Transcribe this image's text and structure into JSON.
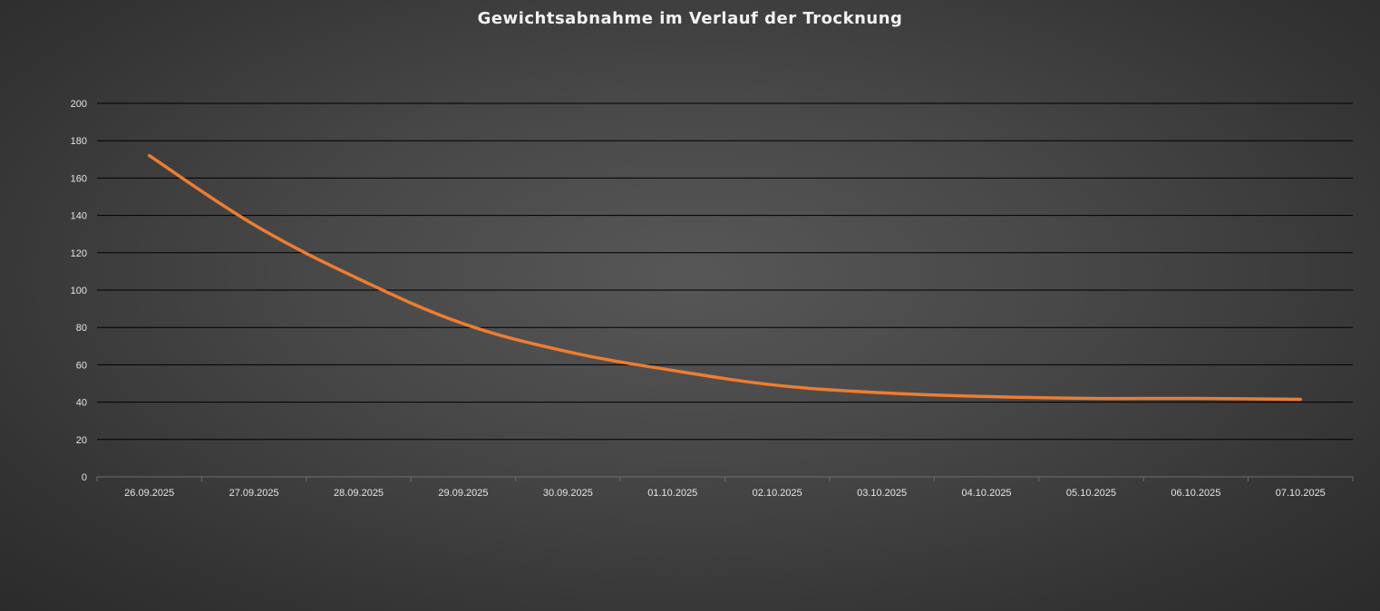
{
  "chart_data": {
    "type": "line",
    "title": "Gewichtsabnahme im Verlauf der Trocknung",
    "xlabel": "",
    "ylabel": "",
    "categories": [
      "26.09.2025",
      "27.09.2025",
      "28.09.2025",
      "29.09.2025",
      "30.09.2025",
      "01.10.2025",
      "02.10.2025",
      "03.10.2025",
      "04.10.2025",
      "05.10.2025",
      "06.10.2025",
      "07.10.2025"
    ],
    "series": [
      {
        "values": [
          172,
          135,
          106,
          82,
          67,
          57,
          49,
          45,
          43,
          42,
          42,
          41.5
        ],
        "color": "#ed7d31"
      }
    ],
    "ylim": [
      0,
      200
    ],
    "yticks": [
      0,
      20,
      40,
      60,
      80,
      100,
      120,
      140,
      160,
      180,
      200
    ],
    "grid": true,
    "legend": "none",
    "background": "#4a4a4a",
    "gridline_color": "#000000"
  }
}
